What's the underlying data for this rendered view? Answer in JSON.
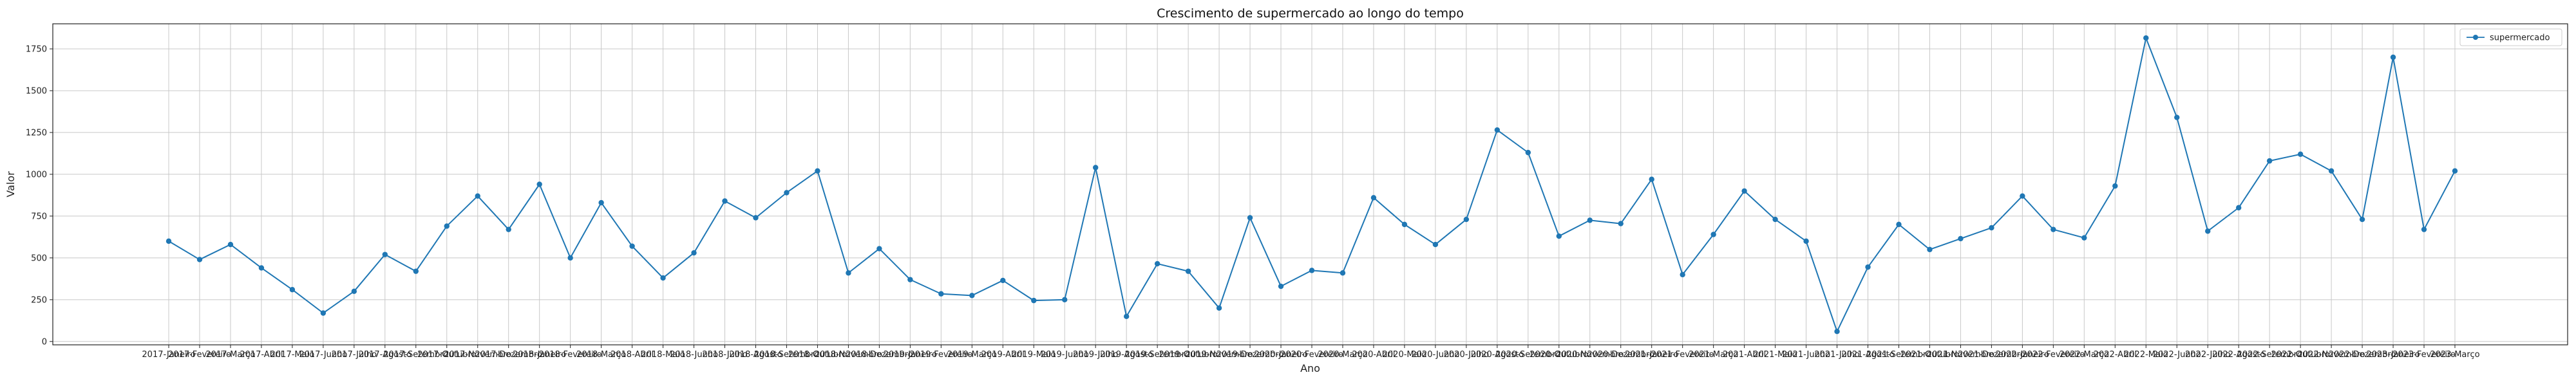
{
  "chart_data": {
    "type": "line",
    "title": "Crescimento de supermercado ao longo do tempo",
    "xlabel": "Ano",
    "ylabel": "Valor",
    "ylim": [
      -20,
      1900
    ],
    "yticks": [
      0,
      250,
      500,
      750,
      1000,
      1250,
      1500,
      1750
    ],
    "grid": true,
    "legend_position": "top-right",
    "x_tick_labels_overlap": true,
    "categories": [
      "2017-Janeiro",
      "2017-Fevereiro",
      "2017-Março",
      "2017-Abril",
      "2017-Maio",
      "2017-Junho",
      "2017-Julho",
      "2017-Agosto",
      "2017-Setembro",
      "2017-Outubro",
      "2017-Novembro",
      "2017-Dezembro",
      "2018-Janeiro",
      "2018-Fevereiro",
      "2018-Março",
      "2018-Abril",
      "2018-Maio",
      "2018-Junho",
      "2018-Julho",
      "2018-Agosto",
      "2018-Setembro",
      "2018-Outubro",
      "2018-Novembro",
      "2018-Dezembro",
      "2019-Janeiro",
      "2019-Fevereiro",
      "2019-Março",
      "2019-Abril",
      "2019-Maio",
      "2019-Junho",
      "2019-Julho",
      "2019-Agosto",
      "2019-Setembro",
      "2019-Outubro",
      "2019-Novembro",
      "2019-Dezembro",
      "2020-Janeiro",
      "2020-Fevereiro",
      "2020-Março",
      "2020-Abril",
      "2020-Maio",
      "2020-Junho",
      "2020-Julho",
      "2020-Agosto",
      "2020-Setembro",
      "2020-Outubro",
      "2020-Novembro",
      "2020-Dezembro",
      "2021-Janeiro",
      "2021-Fevereiro",
      "2021-Março",
      "2021-Abril",
      "2021-Maio",
      "2021-Junho",
      "2021-Julho",
      "2021-Agosto",
      "2021-Setembro",
      "2021-Outubro",
      "2021-Novembro",
      "2021-Dezembro",
      "2022-Janeiro",
      "2022-Fevereiro",
      "2022-Março",
      "2022-Abril",
      "2022-Maio",
      "2022-Junho",
      "2022-Julho",
      "2022-Agosto",
      "2022-Setembro",
      "2022-Outubro",
      "2022-Novembro",
      "2022-Dezembro",
      "2023-Janeiro",
      "2023-Fevereiro",
      "2023-Março"
    ],
    "series": [
      {
        "name": "supermercado",
        "color": "#1f77b4",
        "marker": "circle",
        "values": [
          600,
          490,
          580,
          440,
          310,
          170,
          300,
          520,
          420,
          690,
          870,
          670,
          940,
          500,
          830,
          570,
          380,
          530,
          840,
          740,
          890,
          1020,
          410,
          555,
          370,
          285,
          275,
          365,
          245,
          250,
          1040,
          150,
          465,
          420,
          200,
          740,
          330,
          425,
          410,
          860,
          700,
          580,
          730,
          1265,
          1130,
          630,
          725,
          705,
          970,
          400,
          640,
          900,
          730,
          600,
          60,
          445,
          700,
          550,
          615,
          680,
          870,
          670,
          620,
          930,
          1815,
          1340,
          660,
          800,
          1080,
          1120,
          1020,
          730,
          1700,
          670,
          1020
        ]
      }
    ]
  }
}
